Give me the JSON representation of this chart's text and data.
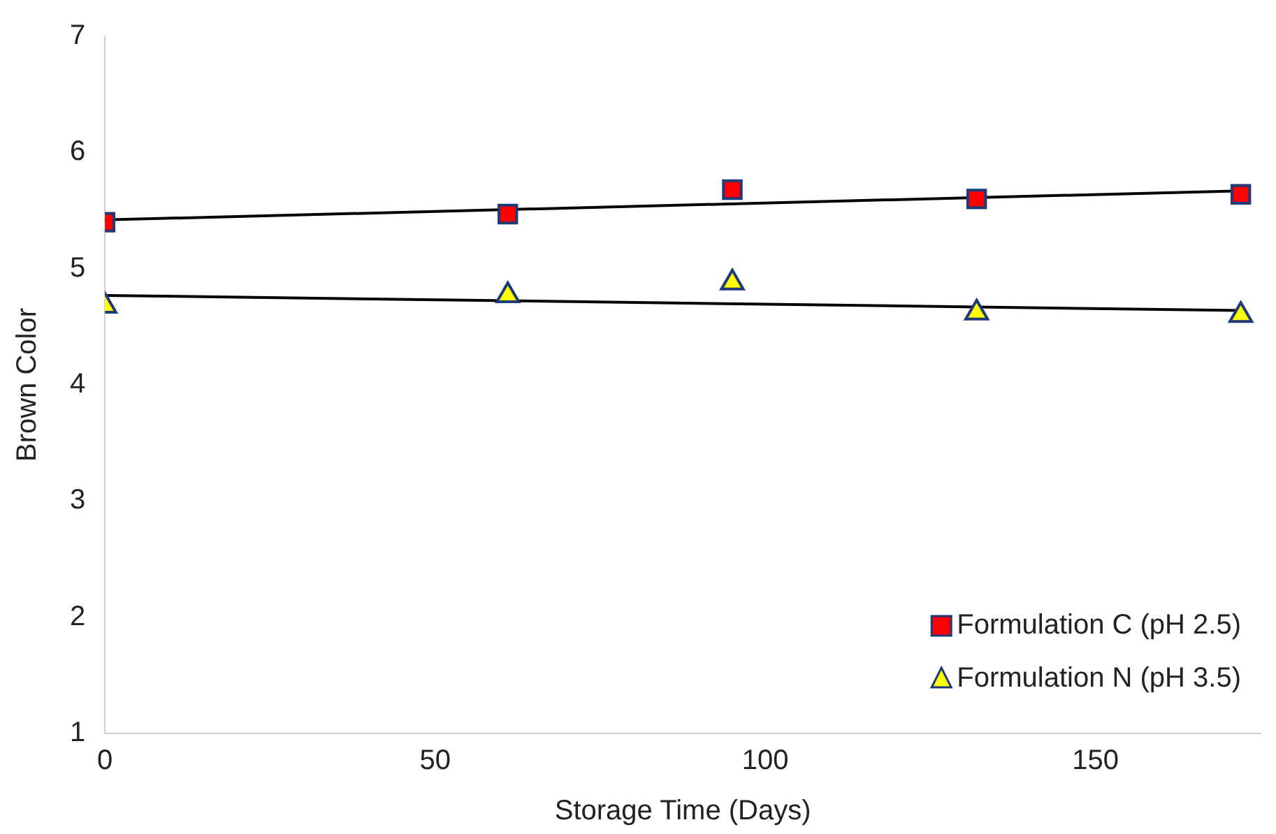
{
  "chart_data": {
    "type": "scatter",
    "xlabel": "Storage Time (Days)",
    "ylabel": "Brown Color",
    "xlim": [
      0,
      175
    ],
    "xticks": [
      0,
      50,
      100,
      150
    ],
    "ylim": [
      1,
      7
    ],
    "yticks": [
      1,
      2,
      3,
      4,
      5,
      6,
      7
    ],
    "grid": false,
    "legend": "bottom right",
    "series": [
      {
        "name": "Formulation C (pH 2.5)",
        "color": "#ff0000",
        "marker": "square",
        "x": [
          0,
          61,
          95,
          132,
          172
        ],
        "values": [
          5.4,
          5.47,
          5.68,
          5.6,
          5.64
        ]
      },
      {
        "name": "Formulation N (pH 3.5)",
        "color": "#ffff00",
        "marker": "triangle",
        "x": [
          0,
          61,
          95,
          132,
          172
        ],
        "values": [
          4.68,
          4.77,
          4.88,
          4.62,
          4.6
        ]
      },
      {
        "type": "line",
        "color": "#000000",
        "marker": "none",
        "x": [
          0,
          172
        ],
        "values": [
          5.42,
          5.67
        ]
      },
      {
        "type": "line",
        "color": "#000000",
        "marker": "none",
        "x": [
          0,
          172
        ],
        "values": [
          4.77,
          4.64
        ]
      }
    ]
  }
}
